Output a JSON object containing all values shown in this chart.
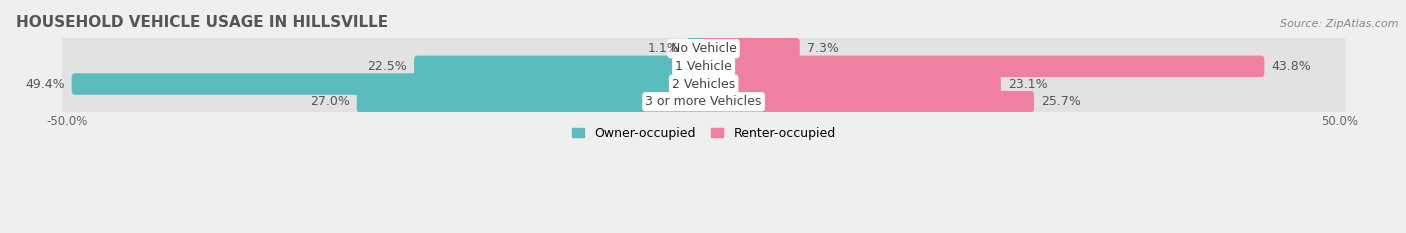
{
  "title": "HOUSEHOLD VEHICLE USAGE IN HILLSVILLE",
  "source": "Source: ZipAtlas.com",
  "categories": [
    "No Vehicle",
    "1 Vehicle",
    "2 Vehicles",
    "3 or more Vehicles"
  ],
  "owner_values": [
    1.1,
    22.5,
    49.4,
    27.0
  ],
  "renter_values": [
    7.3,
    43.8,
    23.1,
    25.7
  ],
  "owner_color": "#5bbcbf",
  "renter_color": "#f080a0",
  "owner_label": "Owner-occupied",
  "renter_label": "Renter-occupied",
  "xtick_labels": [
    "-50.0%",
    "50.0%"
  ],
  "background_color": "#efefef",
  "bar_bg_color": "#e0e0e0",
  "row_bg_color": "#e8e8e8",
  "title_fontsize": 11,
  "source_fontsize": 8,
  "label_fontsize": 9,
  "category_fontsize": 9
}
